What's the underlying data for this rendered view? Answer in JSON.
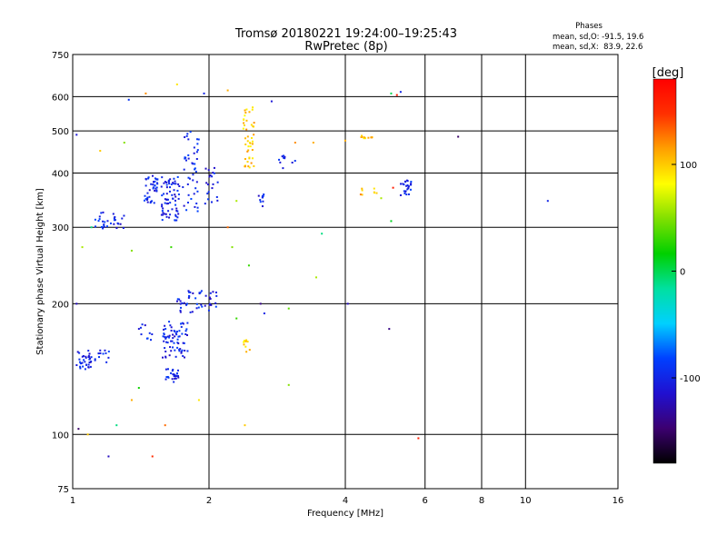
{
  "chart_data": {
    "type": "scatter",
    "title": "Tromsø 20180221 19:24:00–19:25:43",
    "subtitle": "RwPretec (8p)",
    "stats": {
      "header": "Phases",
      "line_o": "mean, sd,O: -91.5, 19.6",
      "line_x": "mean, sd,X:  83.9, 22.6"
    },
    "xlabel": "Frequency [MHz]",
    "ylabel": "Stationary phase Virtual Height [km]",
    "x_scale": "log",
    "y_scale": "log",
    "xlim": [
      1,
      16
    ],
    "ylim": [
      75,
      750
    ],
    "x_ticks": [
      1,
      2,
      4,
      6,
      8,
      10,
      16
    ],
    "x_tick_labels": [
      "1",
      "2",
      "4",
      "6",
      "8",
      "10",
      "16"
    ],
    "y_ticks": [
      75,
      100,
      200,
      300,
      400,
      500,
      600,
      750
    ],
    "y_tick_labels": [
      "75",
      "100",
      "200",
      "300",
      "400",
      "500",
      "600",
      "750"
    ],
    "grid": true,
    "colorbar": {
      "label": "[deg]",
      "min": -180,
      "max": 180,
      "ticks": [
        100,
        0,
        -100
      ],
      "tick_labels": [
        "100",
        "0",
        "-100"
      ],
      "stops": [
        "#000000",
        "#3c0070",
        "#2010d0",
        "#0040ff",
        "#00d0ff",
        "#00e0a0",
        "#00d000",
        "#80e000",
        "#ffff00",
        "#ffa000",
        "#ff3000",
        "#ff0000"
      ]
    },
    "clusters": [
      {
        "x": [
          1.02,
          1.1
        ],
        "y": [
          140,
          156
        ],
        "n": 35,
        "phase": -100
      },
      {
        "x": [
          1.12,
          1.22
        ],
        "y": [
          145,
          158
        ],
        "n": 12,
        "phase": -100
      },
      {
        "x": [
          1.1,
          1.3
        ],
        "y": [
          298,
          325
        ],
        "n": 30,
        "phase": -100
      },
      {
        "x": [
          1.44,
          1.54
        ],
        "y": [
          340,
          400
        ],
        "n": 40,
        "phase": -100
      },
      {
        "x": [
          1.57,
          1.72
        ],
        "y": [
          310,
          395
        ],
        "n": 70,
        "phase": -100
      },
      {
        "x": [
          1.75,
          1.9
        ],
        "y": [
          325,
          500
        ],
        "n": 45,
        "phase": -100
      },
      {
        "x": [
          1.96,
          2.1
        ],
        "y": [
          340,
          420
        ],
        "n": 20,
        "phase": -100
      },
      {
        "x": [
          1.58,
          1.8
        ],
        "y": [
          150,
          182
        ],
        "n": 70,
        "phase": -100
      },
      {
        "x": [
          1.6,
          1.72
        ],
        "y": [
          132,
          142
        ],
        "n": 25,
        "phase": -100
      },
      {
        "x": [
          1.7,
          2.1
        ],
        "y": [
          190,
          215
        ],
        "n": 45,
        "phase": -100
      },
      {
        "x": [
          1.4,
          1.5
        ],
        "y": [
          165,
          185
        ],
        "n": 10,
        "phase": -100
      },
      {
        "x": [
          2.38,
          2.52
        ],
        "y": [
          410,
          570
        ],
        "n": 45,
        "phase": 100
      },
      {
        "x": [
          2.38,
          2.46
        ],
        "y": [
          155,
          165
        ],
        "n": 10,
        "phase": 100
      },
      {
        "x": [
          2.55,
          2.66
        ],
        "y": [
          335,
          360
        ],
        "n": 10,
        "phase": -100
      },
      {
        "x": [
          2.85,
          3.1
        ],
        "y": [
          410,
          440
        ],
        "n": 10,
        "phase": -100
      },
      {
        "x": [
          5.3,
          5.65
        ],
        "y": [
          355,
          385
        ],
        "n": 25,
        "phase": -100
      },
      {
        "x": [
          4.3,
          4.6
        ],
        "y": [
          480,
          490
        ],
        "n": 10,
        "phase": 100
      },
      {
        "x": [
          4.3,
          4.75
        ],
        "y": [
          355,
          370
        ],
        "n": 8,
        "phase": 110
      }
    ],
    "points": [
      {
        "x": 1.03,
        "y": 103,
        "phase": -150
      },
      {
        "x": 1.08,
        "y": 100,
        "phase": 100
      },
      {
        "x": 1.2,
        "y": 89,
        "phase": -120
      },
      {
        "x": 1.5,
        "y": 89,
        "phase": 150
      },
      {
        "x": 1.9,
        "y": 120,
        "phase": 90
      },
      {
        "x": 1.33,
        "y": 590,
        "phase": -90
      },
      {
        "x": 1.45,
        "y": 610,
        "phase": 120
      },
      {
        "x": 1.7,
        "y": 640,
        "phase": 90
      },
      {
        "x": 1.95,
        "y": 610,
        "phase": -100
      },
      {
        "x": 2.2,
        "y": 620,
        "phase": 110
      },
      {
        "x": 2.75,
        "y": 585,
        "phase": -110
      },
      {
        "x": 3.4,
        "y": 470,
        "phase": 110
      },
      {
        "x": 3.55,
        "y": 290,
        "phase": -10
      },
      {
        "x": 3.45,
        "y": 230,
        "phase": 60
      },
      {
        "x": 3.0,
        "y": 195,
        "phase": 40
      },
      {
        "x": 3.0,
        "y": 130,
        "phase": 50
      },
      {
        "x": 4.05,
        "y": 200,
        "phase": -120
      },
      {
        "x": 4.0,
        "y": 475,
        "phase": 110
      },
      {
        "x": 4.8,
        "y": 350,
        "phase": 60
      },
      {
        "x": 5.05,
        "y": 610,
        "phase": 0
      },
      {
        "x": 5.2,
        "y": 605,
        "phase": 160
      },
      {
        "x": 5.3,
        "y": 615,
        "phase": -100
      },
      {
        "x": 5.05,
        "y": 310,
        "phase": 10
      },
      {
        "x": 5.0,
        "y": 175,
        "phase": -140
      },
      {
        "x": 5.1,
        "y": 370,
        "phase": 160
      },
      {
        "x": 5.8,
        "y": 98,
        "phase": 160
      },
      {
        "x": 7.1,
        "y": 485,
        "phase": -150
      },
      {
        "x": 11.2,
        "y": 345,
        "phase": -100
      },
      {
        "x": 1.05,
        "y": 270,
        "phase": 60
      },
      {
        "x": 1.1,
        "y": 300,
        "phase": -10
      },
      {
        "x": 1.35,
        "y": 265,
        "phase": 50
      },
      {
        "x": 1.65,
        "y": 270,
        "phase": 30
      },
      {
        "x": 2.25,
        "y": 270,
        "phase": 50
      },
      {
        "x": 2.2,
        "y": 300,
        "phase": 130
      },
      {
        "x": 2.4,
        "y": 105,
        "phase": 100
      },
      {
        "x": 1.25,
        "y": 105,
        "phase": -10
      },
      {
        "x": 1.6,
        "y": 105,
        "phase": 130
      },
      {
        "x": 1.35,
        "y": 120,
        "phase": 110
      },
      {
        "x": 1.4,
        "y": 128,
        "phase": 20
      },
      {
        "x": 1.3,
        "y": 470,
        "phase": 50
      },
      {
        "x": 1.15,
        "y": 450,
        "phase": 100
      },
      {
        "x": 1.02,
        "y": 490,
        "phase": -110
      },
      {
        "x": 1.02,
        "y": 200,
        "phase": -120
      },
      {
        "x": 2.6,
        "y": 200,
        "phase": -140
      },
      {
        "x": 2.65,
        "y": 190,
        "phase": -100
      },
      {
        "x": 2.3,
        "y": 185,
        "phase": 30
      },
      {
        "x": 2.45,
        "y": 245,
        "phase": 30
      },
      {
        "x": 2.3,
        "y": 345,
        "phase": 60
      },
      {
        "x": 3.1,
        "y": 470,
        "phase": 120
      }
    ]
  }
}
